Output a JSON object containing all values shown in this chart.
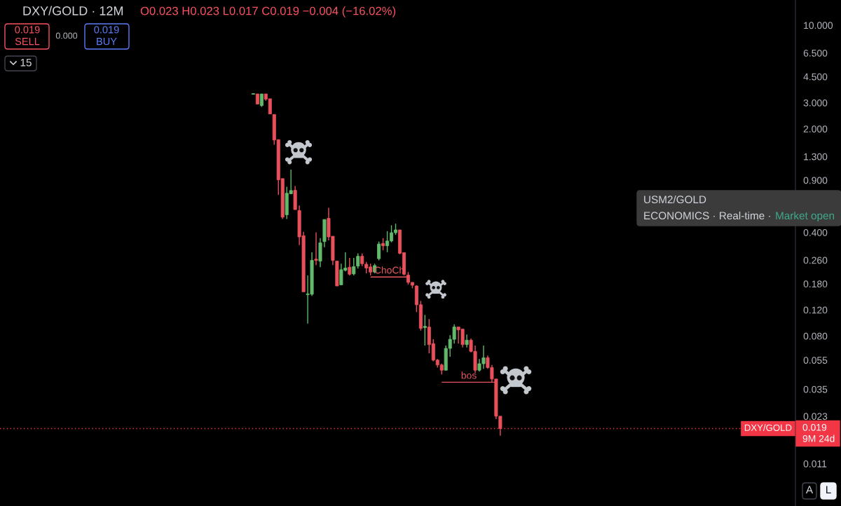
{
  "chart_data": {
    "type": "candlestick",
    "title": "DXY/GOLD · 12M",
    "subtitle": "O0.023 H0.023 L0.017 C0.019 −0.004 (−16.02%)",
    "categories": [
      null,
      null,
      null,
      null,
      null,
      null,
      null,
      null,
      null,
      null,
      null,
      null,
      null,
      null,
      null,
      null,
      null,
      null,
      null,
      null,
      null,
      null,
      null,
      null,
      null,
      null,
      null,
      null,
      null,
      null,
      null,
      null,
      null,
      null,
      null,
      null,
      null,
      null,
      null,
      null,
      null,
      null,
      null,
      null,
      null,
      null,
      null,
      null,
      null,
      null,
      null,
      null,
      null,
      null,
      null,
      null,
      null,
      null,
      null,
      null,
      null,
      null,
      null,
      null,
      null,
      null,
      null,
      null,
      null,
      null,
      null,
      null,
      null,
      null,
      null,
      null,
      null,
      null,
      null,
      null,
      null,
      null,
      null,
      null,
      null,
      null,
      null,
      null,
      null,
      null,
      null,
      null,
      null,
      null,
      null,
      null,
      null,
      null,
      null,
      null,
      null,
      null,
      null,
      null,
      null,
      null,
      null,
      null,
      null,
      null,
      null,
      null,
      null,
      null,
      null,
      null,
      null,
      null,
      null,
      null,
      null,
      null,
      null,
      null,
      null,
      null,
      null,
      null,
      null,
      null,
      null,
      null,
      null,
      null,
      null,
      null,
      null,
      null,
      null,
      null,
      null,
      null,
      null,
      null,
      null,
      null,
      null,
      null,
      null,
      null,
      null,
      null,
      null,
      null,
      null,
      null,
      null,
      null,
      null,
      null,
      null,
      null,
      null,
      null,
      null,
      null,
      null,
      null,
      null,
      null,
      null,
      null,
      null,
      null,
      null,
      null,
      null,
      null,
      null,
      null,
      null,
      null,
      null,
      null,
      null,
      null,
      null,
      null,
      null,
      null
    ],
    "ohlc": [
      null,
      null,
      null,
      null,
      null,
      null,
      null,
      null,
      null,
      null,
      null,
      null,
      null,
      null,
      null,
      null,
      null,
      null,
      null,
      null,
      null,
      null,
      null,
      null,
      null,
      null,
      null,
      null,
      null,
      null,
      null,
      null,
      null,
      null,
      null,
      null,
      null,
      null,
      null,
      null,
      null,
      null,
      null,
      null,
      null,
      null,
      null,
      null,
      null,
      null,
      null,
      null,
      null,
      null,
      null,
      null,
      null,
      null,
      null,
      null,
      [
        3.42,
        3.46,
        3.42,
        3.46
      ],
      [
        3.44,
        3.44,
        2.94,
        2.94
      ],
      [
        2.87,
        3.44,
        2.81,
        3.44
      ],
      [
        3.44,
        3.44,
        3.09,
        3.17
      ],
      [
        3.19,
        3.19,
        2.52,
        2.52
      ],
      [
        2.5,
        2.5,
        1.56,
        1.68
      ],
      [
        1.69,
        1.69,
        0.718,
        0.906
      ],
      [
        0.923,
        0.923,
        0.492,
        0.507
      ],
      [
        0.526,
        0.812,
        0.492,
        0.735
      ],
      [
        0.729,
        1.06,
        0.729,
        0.767
      ],
      [
        0.769,
        0.821,
        0.57,
        0.57
      ],
      [
        0.562,
        0.608,
        0.328,
        0.373
      ],
      [
        0.38,
        0.404,
        0.159,
        0.159
      ],
      [
        0.152,
        0.205,
        0.097,
        0.154
      ],
      [
        0.153,
        0.294,
        0.149,
        0.259
      ],
      [
        0.264,
        0.401,
        0.241,
        0.259
      ],
      [
        0.256,
        0.366,
        0.233,
        0.34
      ],
      [
        0.347,
        0.489,
        0.318,
        0.489
      ],
      [
        0.498,
        0.586,
        0.353,
        0.373
      ],
      [
        0.377,
        0.377,
        0.241,
        0.259
      ],
      [
        0.256,
        0.256,
        0.174,
        0.174
      ],
      [
        0.177,
        0.246,
        0.177,
        0.224
      ],
      [
        0.222,
        0.294,
        0.218,
        0.23
      ],
      [
        0.233,
        0.269,
        0.205,
        0.209
      ],
      [
        0.21,
        0.269,
        0.205,
        0.235
      ],
      [
        0.237,
        0.289,
        0.228,
        0.276
      ],
      [
        0.276,
        0.289,
        0.237,
        0.246
      ],
      [
        0.244,
        0.253,
        0.212,
        0.23
      ],
      [
        0.234,
        0.246,
        0.205,
        0.216
      ],
      [
        0.216,
        0.246,
        0.212,
        0.239
      ],
      [
        0.266,
        0.347,
        0.259,
        0.334
      ],
      [
        0.337,
        0.366,
        0.303,
        0.325
      ],
      [
        0.325,
        0.408,
        0.294,
        0.35
      ],
      [
        0.35,
        0.447,
        0.343,
        0.398
      ],
      [
        0.398,
        0.458,
        0.385,
        0.416
      ],
      [
        0.416,
        0.416,
        0.285,
        0.289
      ],
      [
        0.292,
        0.292,
        0.205,
        0.209
      ],
      [
        0.206,
        0.216,
        0.178,
        0.184
      ],
      [
        0.184,
        0.184,
        0.168,
        0.176
      ],
      [
        0.174,
        0.176,
        0.116,
        0.13
      ],
      [
        0.13,
        0.138,
        0.087,
        0.09
      ],
      [
        0.091,
        0.111,
        0.069,
        0.093
      ],
      [
        0.092,
        0.104,
        0.061,
        0.07
      ],
      [
        0.071,
        0.076,
        0.054,
        0.055
      ],
      [
        0.055,
        0.056,
        0.049,
        0.051
      ],
      [
        0.051,
        0.052,
        0.044,
        0.047
      ],
      [
        0.047,
        0.069,
        0.047,
        0.066
      ],
      [
        0.066,
        0.081,
        0.058,
        0.076
      ],
      [
        0.076,
        0.096,
        0.071,
        0.092
      ],
      [
        0.092,
        0.092,
        0.071,
        0.088
      ],
      [
        0.089,
        0.089,
        0.067,
        0.07
      ],
      [
        0.07,
        0.082,
        0.067,
        0.075
      ],
      [
        0.075,
        0.077,
        0.062,
        0.063
      ],
      [
        0.063,
        0.069,
        0.045,
        0.047
      ],
      [
        0.047,
        0.056,
        0.046,
        0.052
      ],
      [
        0.052,
        0.069,
        0.048,
        0.057
      ],
      [
        0.057,
        0.059,
        0.048,
        0.049
      ],
      [
        0.049,
        0.051,
        0.039,
        0.041
      ],
      [
        0.041,
        0.041,
        0.022,
        0.023
      ],
      [
        0.023,
        0.023,
        0.017,
        0.019
      ],
      null,
      null,
      null,
      null,
      null,
      null,
      null,
      null,
      null,
      null,
      null,
      null,
      null,
      null,
      null,
      null,
      null,
      null,
      null,
      null,
      null,
      null,
      null,
      null,
      null,
      null,
      null,
      null,
      null,
      null,
      null,
      null,
      null,
      null,
      null,
      null,
      null,
      null,
      null,
      null,
      null,
      null,
      null,
      null,
      null,
      null,
      null,
      null,
      null,
      null,
      null,
      null,
      null,
      null,
      null,
      null,
      null,
      null,
      null,
      null,
      null,
      null,
      null,
      null,
      null,
      null,
      null,
      null,
      null,
      null
    ],
    "colors": [
      null,
      null,
      null,
      null,
      null,
      null,
      null,
      null,
      null,
      null,
      null,
      null,
      null,
      null,
      null,
      null,
      null,
      null,
      null,
      null,
      null,
      null,
      null,
      null,
      null,
      null,
      null,
      null,
      null,
      null,
      null,
      null,
      null,
      null,
      null,
      null,
      null,
      null,
      null,
      null,
      null,
      null,
      null,
      null,
      null,
      null,
      null,
      null,
      null,
      null,
      null,
      null,
      null,
      null,
      null,
      null,
      null,
      null,
      null,
      null,
      "#63b96b",
      "#e8505b",
      "#63b96b",
      "#e8505b",
      "#e8505b",
      "#e8505b",
      "#e8505b",
      "#e8505b",
      "#63b96b",
      "#63b96b",
      "#e8505b",
      "#e8505b",
      "#e8505b",
      "#63b96b",
      "#63b96b",
      "#e8505b",
      "#63b96b",
      "#63b96b",
      "#e8505b",
      "#e8505b",
      "#e8505b",
      "#63b96b",
      "#63b96b",
      "#e8505b",
      "#63b96b",
      "#63b96b",
      "#e8505b",
      "#e8505b",
      "#e8505b",
      "#63b96b",
      "#63b96b",
      "#e8505b",
      "#63b96b",
      "#63b96b",
      "#63b96b",
      "#e8505b",
      "#e8505b",
      "#e8505b",
      "#e8505b",
      "#e8505b",
      "#e8505b",
      "#63b96b",
      "#e8505b",
      "#e8505b",
      "#e8505b",
      "#e8505b",
      "#63b96b",
      "#63b96b",
      "#63b96b",
      "#e8505b",
      "#e8505b",
      "#63b96b",
      "#e8505b",
      "#e8505b",
      "#63b96b",
      "#63b96b",
      "#e8505b",
      "#e8505b",
      "#e8505b",
      "#e8505b",
      null,
      null,
      null,
      null,
      null,
      null,
      null,
      null,
      null,
      null,
      null,
      null,
      null,
      null,
      null,
      null,
      null,
      null,
      null,
      null,
      null,
      null,
      null,
      null,
      null,
      null,
      null,
      null,
      null,
      null,
      null,
      null,
      null,
      null,
      null,
      null,
      null,
      null,
      null,
      null,
      null,
      null,
      null,
      null,
      null,
      null,
      null,
      null,
      null,
      null,
      null,
      null,
      null,
      null,
      null,
      null,
      null,
      null,
      null,
      null,
      null,
      null,
      null,
      null,
      null,
      null,
      null,
      null,
      null,
      null
    ],
    "log": true,
    "ylim": [
      0.0057,
      14.8
    ],
    "yticks": [
      0.011,
      0.023,
      0.035,
      0.055,
      {
        "value": 0.08,
        "label": "0.080"
      },
      {
        "value": 0.12,
        "label": "0.120"
      },
      {
        "value": 0.18,
        "label": "0.180"
      },
      {
        "value": 0.26,
        "label": "0.260"
      },
      {
        "value": 0.4,
        "label": "0.400"
      },
      {
        "value": 0.9,
        "label": "0.900"
      },
      {
        "value": 1.3,
        "label": "1.300"
      },
      {
        "value": 2,
        "label": "2.000"
      },
      {
        "value": 3,
        "label": "3.000"
      },
      {
        "value": 4.5,
        "label": "4.500"
      },
      {
        "value": 6.5,
        "label": "6.500"
      },
      {
        "value": 10,
        "label": "10.000"
      }
    ],
    "tick_labels": "y",
    "grid": false,
    "ref_lines": [
      {
        "axis": "y",
        "value": 0.019,
        "label": "DXY/GOLD",
        "color": "#f23645",
        "line_style": "dotted"
      },
      {
        "axis": "y",
        "value": 0.2,
        "label": "ChoCh",
        "color": "#e5585f",
        "line_style": "solid"
      },
      {
        "axis": "y",
        "value": 0.039,
        "label": "bos",
        "color": "#e5585f",
        "line_style": "solid"
      }
    ],
    "annotations": [
      "0.019\nSELL",
      "0.000",
      "0.019\nBUY",
      "15",
      "USM2/GOLD",
      "ECONOMICS · Real-time ·",
      "Market open",
      "0.019",
      "9M 24d",
      "A",
      "L"
    ]
  }
}
